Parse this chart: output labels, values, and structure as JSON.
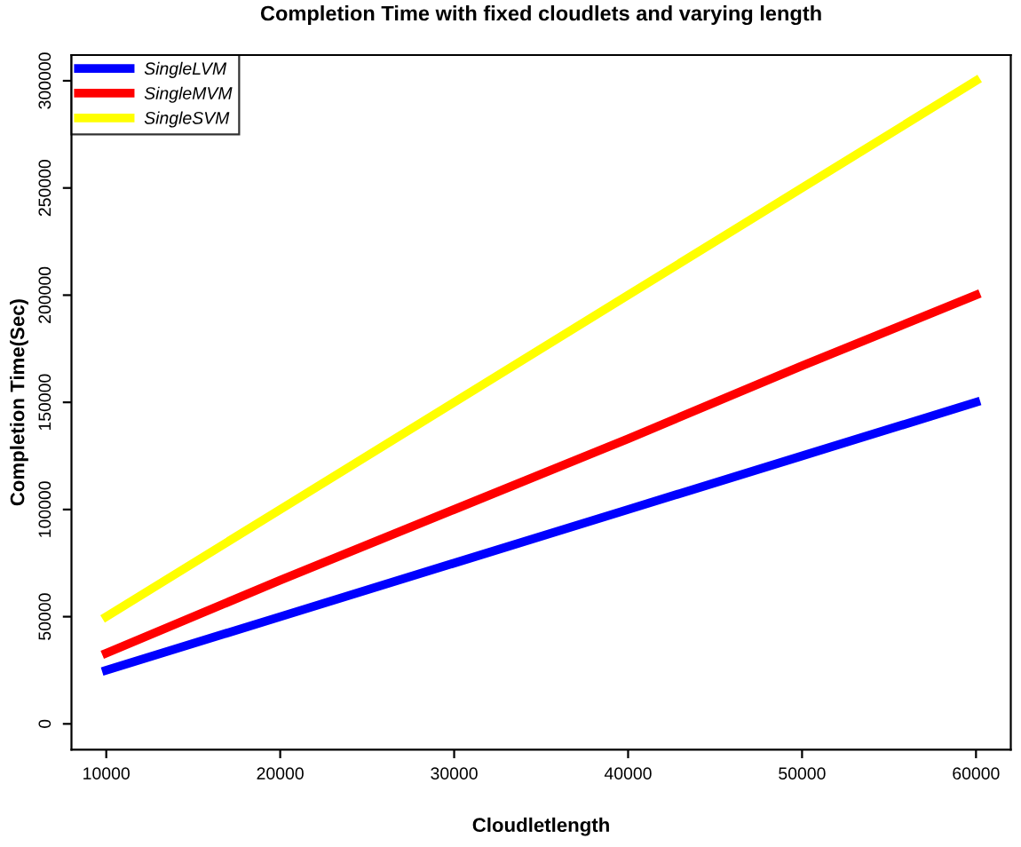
{
  "chart_data": {
    "type": "line",
    "title": "Completion Time with fixed cloudlets and varying length",
    "xlabel": "Cloudletlength",
    "ylabel": "Completion Time(Sec)",
    "x": [
      10000,
      20000,
      30000,
      40000,
      50000,
      60000
    ],
    "series": [
      {
        "name": "SingleLVM",
        "color": "#0000ff",
        "values": [
          25000,
          50000,
          75000,
          100000,
          125000,
          150000
        ]
      },
      {
        "name": "SingleMVM",
        "color": "#ff0000",
        "values": [
          33000,
          67000,
          100000,
          133000,
          167000,
          200000
        ]
      },
      {
        "name": "SingleSVM",
        "color": "#ffff00",
        "values": [
          50000,
          100000,
          150000,
          200000,
          250000,
          300000
        ]
      }
    ],
    "xlim": [
      8000,
      62000
    ],
    "ylim": [
      -12000,
      312000
    ],
    "xticks": [
      10000,
      20000,
      30000,
      40000,
      50000,
      60000
    ],
    "yticks": [
      0,
      50000,
      100000,
      150000,
      200000,
      250000,
      300000
    ],
    "grid": false,
    "legend": "top left",
    "marker": "none",
    "line_style": "solid"
  }
}
